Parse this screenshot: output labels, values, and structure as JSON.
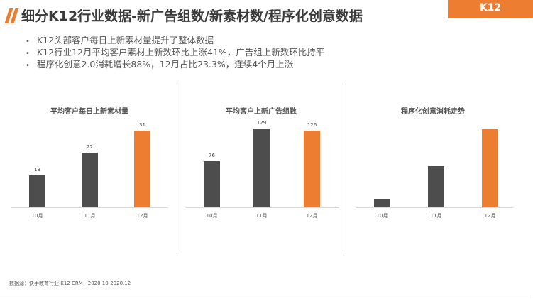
{
  "header": {
    "title": "细分K12行业数据-新广告组数/新素材数/程序化创意数据",
    "tag": "K12"
  },
  "bullets": [
    "K12头部客户每日上新素材量提升了整体数据",
    "K12行业12月平均客户素材上新数环比上涨41%，广告组上新数环比持平",
    "程序化创意2.0消耗增长88%，12月占比23.3%，连续4个月上涨"
  ],
  "colors": {
    "accent": "#ed7d31",
    "dark_bar": "#4d4d4d"
  },
  "chart_data": [
    {
      "type": "bar",
      "title": "平均客户每日上新素材量",
      "categories": [
        "10月",
        "11月",
        "12月"
      ],
      "values": [
        13,
        22,
        31
      ],
      "data_labels": [
        "13",
        "22",
        "31"
      ],
      "ylim": [
        0,
        35
      ],
      "bar_colors": [
        "#4d4d4d",
        "#4d4d4d",
        "#ed7d31"
      ]
    },
    {
      "type": "bar",
      "title": "平均客户上新广告组数",
      "categories": [
        "10月",
        "11月",
        "12月"
      ],
      "values": [
        76,
        129,
        126
      ],
      "data_labels": [
        "76",
        "129",
        "126"
      ],
      "ylim": [
        0,
        142
      ],
      "bar_colors": [
        "#4d4d4d",
        "#4d4d4d",
        "#ed7d31"
      ]
    },
    {
      "type": "bar",
      "title": "程序化创意消耗走势",
      "categories": [
        "10月",
        "11月",
        "12月"
      ],
      "values": [
        11,
        52,
        99
      ],
      "data_labels": [],
      "ylim": [
        0,
        110
      ],
      "bar_colors": [
        "#4d4d4d",
        "#4d4d4d",
        "#ed7d31"
      ]
    }
  ],
  "footer": {
    "source": "数据源：快手教育行业 K12 CRM，2020.10-2020.12"
  }
}
